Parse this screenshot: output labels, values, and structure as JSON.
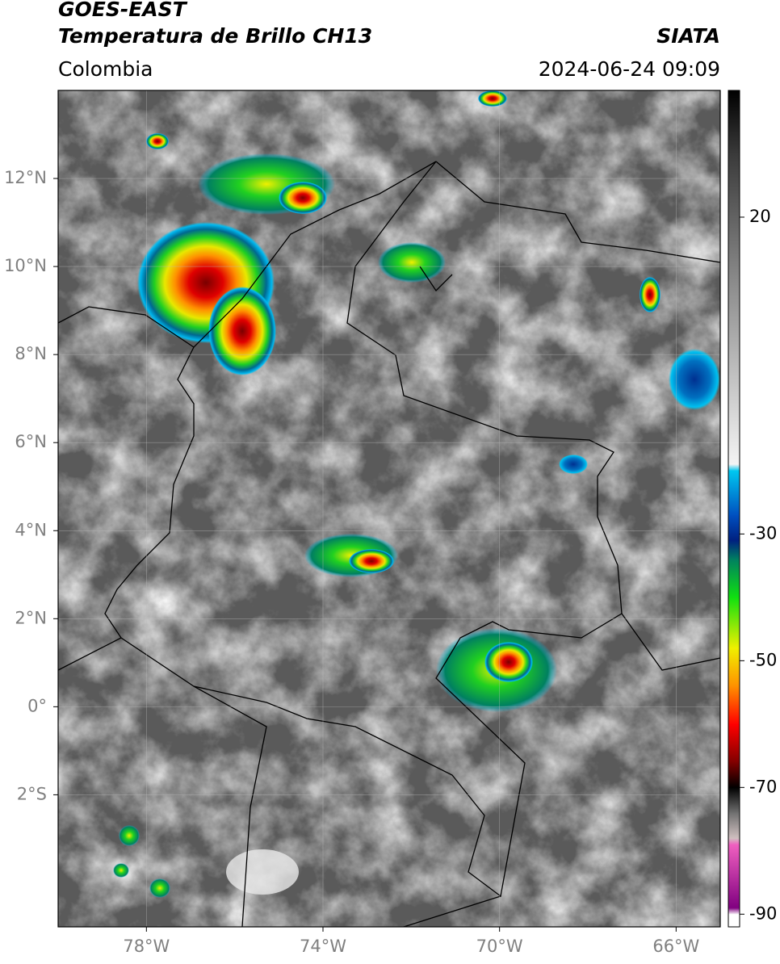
{
  "header": {
    "line1": "GOES-EAST",
    "line2": "Temperatura de Brillo CH13",
    "source": "SIATA",
    "region": "Colombia",
    "datetime": "2024-06-24 09:09"
  },
  "map": {
    "xlim": [
      -80,
      -65
    ],
    "ylim": [
      -5,
      14
    ],
    "xticks": [
      {
        "value": -78,
        "label": "78°W"
      },
      {
        "value": -74,
        "label": "74°W"
      },
      {
        "value": -70,
        "label": "70°W"
      },
      {
        "value": -66,
        "label": "66°W"
      }
    ],
    "yticks": [
      {
        "value": 12,
        "label": "12°N"
      },
      {
        "value": 10,
        "label": "10°N"
      },
      {
        "value": 8,
        "label": "8°N"
      },
      {
        "value": 6,
        "label": "6°N"
      },
      {
        "value": 4,
        "label": "4°N"
      },
      {
        "value": 2,
        "label": "2°N"
      },
      {
        "value": 0,
        "label": "0°"
      },
      {
        "value": -2,
        "label": "2°S"
      }
    ]
  },
  "colorbar": {
    "clim": [
      -92,
      40
    ],
    "ticks": [
      20,
      -30,
      -50,
      -70,
      -90
    ],
    "colormap": [
      {
        "value": 40,
        "color": "#000000"
      },
      {
        "value": 30,
        "color": "#3a3a3a"
      },
      {
        "value": 10,
        "color": "#8a8a8a"
      },
      {
        "value": -19,
        "color": "#f4f4f4"
      },
      {
        "value": -20,
        "color": "#00c8f0"
      },
      {
        "value": -27,
        "color": "#0050c0"
      },
      {
        "value": -31,
        "color": "#002080"
      },
      {
        "value": -34,
        "color": "#008060"
      },
      {
        "value": -40,
        "color": "#10e010"
      },
      {
        "value": -48,
        "color": "#f0f000"
      },
      {
        "value": -54,
        "color": "#ff9000"
      },
      {
        "value": -60,
        "color": "#ff0000"
      },
      {
        "value": -66,
        "color": "#800000"
      },
      {
        "value": -70,
        "color": "#000000"
      },
      {
        "value": -74,
        "color": "#707070"
      },
      {
        "value": -78,
        "color": "#d0c0c0"
      },
      {
        "value": -79,
        "color": "#f060c0"
      },
      {
        "value": -89,
        "color": "#800080"
      },
      {
        "value": -90,
        "color": "#ffffff"
      },
      {
        "value": -92,
        "color": "#ffffff"
      }
    ]
  }
}
